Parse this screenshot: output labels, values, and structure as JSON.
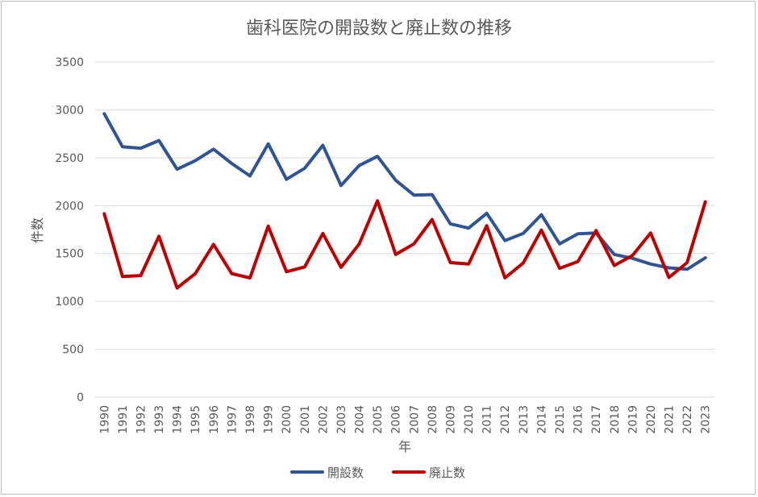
{
  "chart_data": {
    "type": "line",
    "title": "歯科医院の開設数と廃止数の推移",
    "xlabel": "年",
    "ylabel": "件数",
    "ylim": [
      0,
      3500
    ],
    "yticks": [
      0,
      500,
      1000,
      1500,
      2000,
      2500,
      3000,
      3500
    ],
    "grid": true,
    "legend_position": "bottom",
    "categories": [
      "1990",
      "1991",
      "1992",
      "1993",
      "1994",
      "1995",
      "1996",
      "1997",
      "1998",
      "1999",
      "2000",
      "2001",
      "2002",
      "2003",
      "2004",
      "2005",
      "2006",
      "2007",
      "2008",
      "2009",
      "2010",
      "2011",
      "2012",
      "2013",
      "2014",
      "2015",
      "2016",
      "2017",
      "2018",
      "2019",
      "2020",
      "2021",
      "2022",
      "2023"
    ],
    "series": [
      {
        "name": "開設数",
        "color": "#2f5597",
        "values": [
          2960,
          2615,
          2600,
          2680,
          2380,
          2470,
          2590,
          2440,
          2310,
          2645,
          2275,
          2390,
          2630,
          2210,
          2420,
          2515,
          2265,
          2110,
          2115,
          1810,
          1765,
          1920,
          1635,
          1710,
          1905,
          1600,
          1705,
          1715,
          1490,
          1450,
          1390,
          1350,
          1335,
          1455
        ]
      },
      {
        "name": "廃止数",
        "color": "#c00000",
        "values": [
          1915,
          1260,
          1270,
          1680,
          1140,
          1290,
          1595,
          1290,
          1245,
          1785,
          1310,
          1360,
          1710,
          1355,
          1600,
          2050,
          1490,
          1600,
          1855,
          1405,
          1390,
          1790,
          1245,
          1400,
          1745,
          1345,
          1415,
          1740,
          1375,
          1480,
          1715,
          1250,
          1405,
          2040
        ]
      }
    ]
  }
}
